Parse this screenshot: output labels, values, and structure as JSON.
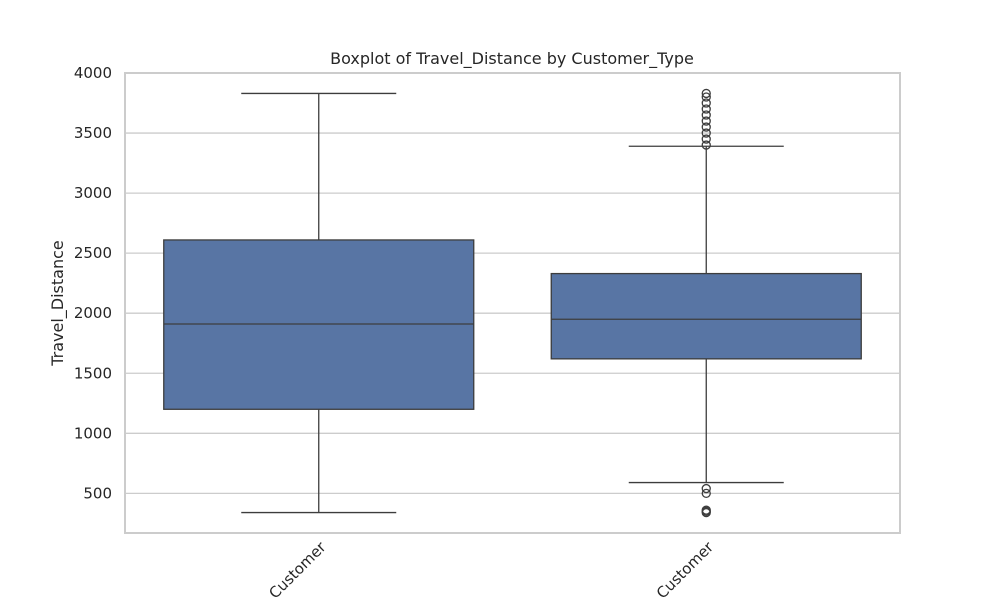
{
  "chart_data": {
    "type": "box",
    "title": "Boxplot of Travel_Distance by Customer_Type",
    "xlabel": "",
    "ylabel": "Travel_Distance",
    "ylim": [
      170,
      4000
    ],
    "yticks": [
      500,
      1000,
      1500,
      2000,
      2500,
      3000,
      3500,
      4000
    ],
    "grid": true,
    "box_color": "#5875a4",
    "line_color": "#3d3d3d",
    "categories": [
      {
        "label": "Customer",
        "whisker_low": 340,
        "q1": 1200,
        "median": 1910,
        "q3": 2610,
        "whisker_high": 3830,
        "outliers": []
      },
      {
        "label": "Customer",
        "whisker_low": 590,
        "q1": 1620,
        "median": 1950,
        "q3": 2330,
        "whisker_high": 3390,
        "outliers": [
          340,
          350,
          360,
          500,
          540,
          3400,
          3450,
          3500,
          3550,
          3600,
          3650,
          3700,
          3750,
          3800,
          3830
        ]
      }
    ]
  }
}
